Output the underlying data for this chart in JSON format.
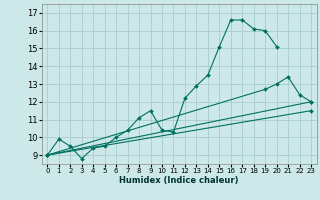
{
  "xlabel": "Humidex (Indice chaleur)",
  "background_color": "#cce8e8",
  "grid_color": "#aacccc",
  "line_color": "#007060",
  "xlim": [
    -0.5,
    23.5
  ],
  "ylim": [
    8.5,
    17.5
  ],
  "xticks": [
    0,
    1,
    2,
    3,
    4,
    5,
    6,
    7,
    8,
    9,
    10,
    11,
    12,
    13,
    14,
    15,
    16,
    17,
    18,
    19,
    20,
    21,
    22,
    23
  ],
  "yticks": [
    9,
    10,
    11,
    12,
    13,
    14,
    15,
    16,
    17
  ],
  "curve1_x": [
    0,
    1,
    2,
    3,
    4,
    5,
    6,
    7,
    8,
    9,
    10,
    11,
    12,
    13,
    14,
    15,
    16,
    17,
    18,
    19,
    20
  ],
  "curve1_y": [
    9.0,
    9.9,
    9.5,
    8.8,
    9.4,
    9.5,
    10.0,
    10.4,
    11.1,
    11.5,
    10.4,
    10.3,
    12.2,
    12.9,
    13.5,
    15.1,
    16.6,
    16.6,
    16.1,
    16.0,
    15.1
  ],
  "curve2_x": [
    0,
    19,
    20,
    21,
    22,
    23
  ],
  "curve2_y": [
    9.0,
    12.7,
    13.0,
    13.4,
    12.4,
    12.0
  ],
  "line1_x": [
    0,
    23
  ],
  "line1_y": [
    9.0,
    12.0
  ],
  "line2_x": [
    0,
    23
  ],
  "line2_y": [
    9.0,
    11.5
  ]
}
